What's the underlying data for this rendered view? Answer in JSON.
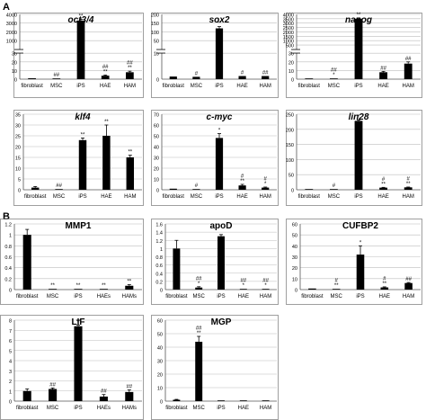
{
  "figure": {
    "panel_labels": [
      "A",
      "B"
    ]
  },
  "colors": {
    "bar": "#000000",
    "axis": "#555555",
    "grid": "#bdbdbd",
    "frame": "#777777",
    "text": "#000000"
  },
  "chart_data": [
    {
      "type": "bar",
      "panel": "A",
      "title": "oct3/4",
      "title_italic": true,
      "categories": [
        "fibroblast",
        "MSC",
        "iPS",
        "HAE",
        "HAM"
      ],
      "values": [
        1,
        0.2,
        3300,
        4,
        8
      ],
      "errors": [
        0,
        0,
        150,
        0.8,
        1.2
      ],
      "annotations": [
        "",
        "##",
        "**",
        "##\n**",
        "##\n**"
      ],
      "y_scale": "broken",
      "yticks": [
        "0",
        "10",
        "20",
        "30",
        "1000",
        "2000",
        "3000",
        "4000"
      ],
      "ylim": [
        0,
        4000
      ],
      "grid": true,
      "legend": "none"
    },
    {
      "type": "bar",
      "panel": "A",
      "title": "sox2",
      "title_italic": true,
      "categories": [
        "fibroblast",
        "MSC",
        "iPS",
        "HAE",
        "HAM"
      ],
      "values": [
        1,
        0.9,
        120,
        1.2,
        1.2
      ],
      "errors": [
        0,
        0,
        10,
        0,
        0
      ],
      "annotations": [
        "",
        "#",
        "**",
        "#",
        "##"
      ],
      "y_scale": "broken",
      "yticks": [
        "0",
        "10",
        "50",
        "100",
        "150",
        "200"
      ],
      "ylim": [
        0,
        200
      ],
      "grid": true,
      "legend": "none"
    },
    {
      "type": "bar",
      "panel": "A",
      "title": "nanog",
      "title_italic": true,
      "categories": [
        "fibroblast",
        "MSC",
        "iPS",
        "HAE",
        "HAM"
      ],
      "values": [
        0.5,
        0.5,
        3500,
        8,
        18
      ],
      "errors": [
        0,
        0,
        100,
        1,
        2
      ],
      "annotations": [
        "",
        "##\n*",
        "**",
        "##",
        "##"
      ],
      "y_scale": "broken",
      "yticks": [
        "0",
        "10",
        "20",
        "30",
        "500",
        "1000",
        "1500",
        "2000",
        "2500",
        "3000",
        "3500",
        "4000"
      ],
      "ylim": [
        0,
        4000
      ],
      "grid": true,
      "legend": "none"
    },
    {
      "type": "bar",
      "panel": "A",
      "title": "klf4",
      "title_italic": true,
      "categories": [
        "fibroblast",
        "MSC",
        "iPS",
        "HAE",
        "HAM"
      ],
      "values": [
        1,
        0.1,
        23,
        25,
        15
      ],
      "errors": [
        0.5,
        0,
        1,
        5,
        1
      ],
      "annotations": [
        "",
        "##",
        "**",
        "**",
        "**"
      ],
      "yticks": [
        "0",
        "5",
        "10",
        "15",
        "20",
        "25",
        "30",
        "35"
      ],
      "ylim": [
        0,
        35
      ],
      "grid": true,
      "legend": "none"
    },
    {
      "type": "bar",
      "panel": "A",
      "title": "c-myc",
      "title_italic": true,
      "categories": [
        "fibroblast",
        "MSC",
        "iPS",
        "HAE",
        "HAM"
      ],
      "values": [
        1,
        0.5,
        48,
        4,
        2
      ],
      "errors": [
        0,
        0,
        4,
        1,
        0.5
      ],
      "annotations": [
        "",
        "#",
        "*",
        "#\n**",
        "#\n*"
      ],
      "yticks": [
        "0",
        "10",
        "20",
        "30",
        "40",
        "50",
        "60",
        "70"
      ],
      "ylim": [
        0,
        70
      ],
      "grid": true,
      "legend": "none"
    },
    {
      "type": "bar",
      "panel": "A",
      "title": "lin28",
      "title_italic": true,
      "categories": [
        "fibroblast",
        "MSC",
        "iPS",
        "HAE",
        "HAM"
      ],
      "values": [
        0.5,
        0.5,
        228,
        7,
        8
      ],
      "errors": [
        0,
        0,
        3,
        1,
        1
      ],
      "annotations": [
        "",
        "#",
        "*",
        "#\n**",
        "#\n**"
      ],
      "yticks": [
        "0",
        "50",
        "100",
        "150",
        "200",
        "250"
      ],
      "ylim": [
        0,
        250
      ],
      "grid": true,
      "legend": "none"
    },
    {
      "type": "bar",
      "panel": "B",
      "title": "MMP1",
      "title_italic": false,
      "categories": [
        "fibroblast",
        "MSC",
        "iPS",
        "HAEs",
        "HAMs"
      ],
      "values": [
        1,
        0.01,
        0.01,
        0.01,
        0.07
      ],
      "errors": [
        0.1,
        0,
        0,
        0,
        0.02
      ],
      "annotations": [
        "",
        "**",
        "**",
        "**",
        "**"
      ],
      "yticks": [
        "0",
        "0.2",
        "0.4",
        "0.6",
        "0.8",
        "1",
        "1.2"
      ],
      "ylim": [
        0,
        1.2
      ],
      "grid": true,
      "legend": "none"
    },
    {
      "type": "bar",
      "panel": "B",
      "title": "apoD",
      "title_italic": false,
      "categories": [
        "fibroblast",
        "MSC",
        "iPS",
        "HAE",
        "HAM"
      ],
      "values": [
        1,
        0.05,
        1.3,
        0.005,
        0.005
      ],
      "errors": [
        0.2,
        0.02,
        0.04,
        0,
        0
      ],
      "annotations": [
        "",
        "##\n*",
        "",
        "##\n*",
        "##\n*"
      ],
      "yticks": [
        "0",
        "0.2",
        "0.4",
        "0.6",
        "0.8",
        "1",
        "1.2",
        "1.4",
        "1.6"
      ],
      "ylim": [
        0,
        1.6
      ],
      "grid": true,
      "legend": "none"
    },
    {
      "type": "bar",
      "panel": "B",
      "title": "CUFBP2",
      "title_italic": false,
      "categories": [
        "fibroblast",
        "MSC",
        "iPS",
        "HAE",
        "HAM"
      ],
      "values": [
        1,
        0.5,
        32,
        2,
        6
      ],
      "errors": [
        0,
        0,
        8,
        0.5,
        0.5
      ],
      "annotations": [
        "",
        "#\n**",
        "*",
        "#\n**",
        "##"
      ],
      "yticks": [
        "0",
        "10",
        "20",
        "30",
        "40",
        "50",
        "60"
      ],
      "ylim": [
        0,
        60
      ],
      "grid": true,
      "legend": "none"
    },
    {
      "type": "bar",
      "panel": "B",
      "title": "LIF",
      "title_italic": false,
      "categories": [
        "fibroblast",
        "MSC",
        "iPS",
        "HAEs",
        "HAMs"
      ],
      "values": [
        1,
        1.2,
        7.4,
        0.45,
        0.9
      ],
      "errors": [
        0.2,
        0.1,
        0.1,
        0.2,
        0.2
      ],
      "annotations": [
        "",
        "##",
        "**",
        "##",
        "##"
      ],
      "yticks": [
        "0",
        "1",
        "2",
        "3",
        "4",
        "5",
        "6",
        "7",
        "8"
      ],
      "ylim": [
        0,
        8
      ],
      "grid": true,
      "legend": "none"
    },
    {
      "type": "bar",
      "panel": "B",
      "title": "MGP",
      "title_italic": false,
      "categories": [
        "fibroblast",
        "MSC",
        "iPS",
        "HAE",
        "HAM"
      ],
      "values": [
        1,
        44,
        0.3,
        0.3,
        0.3
      ],
      "errors": [
        0.3,
        4,
        0,
        0,
        0
      ],
      "annotations": [
        "",
        "##\n**",
        "",
        "",
        ""
      ],
      "yticks": [
        "0",
        "10",
        "20",
        "30",
        "40",
        "50",
        "60"
      ],
      "ylim": [
        0,
        60
      ],
      "grid": true,
      "legend": "none"
    }
  ]
}
